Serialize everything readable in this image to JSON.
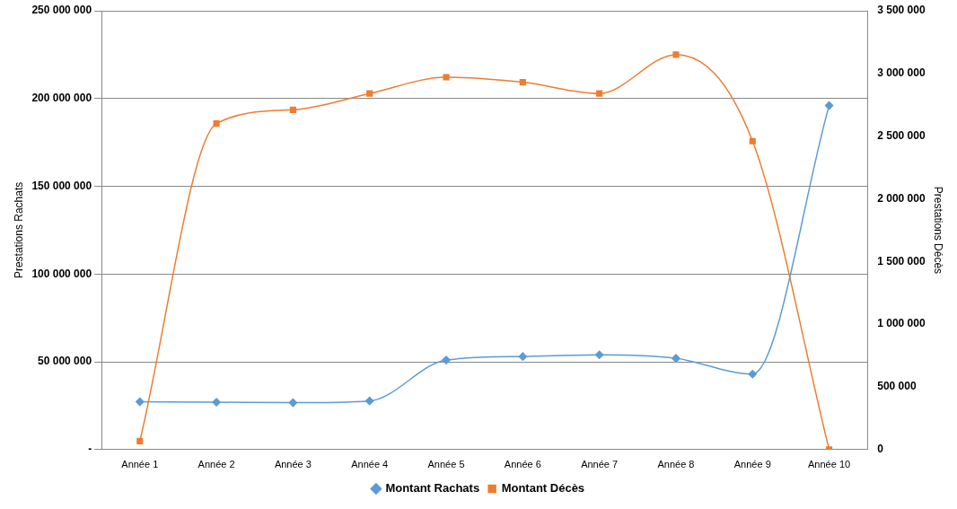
{
  "chart_data": {
    "type": "line",
    "categories": [
      "Année 1",
      "Année 2",
      "Année 3",
      "Année 4",
      "Année 5",
      "Année 6",
      "Année 7",
      "Année 8",
      "Année 9",
      "Année 10"
    ],
    "ylabel": "Prestations Rachats",
    "y2label": "Prestations Décès",
    "ylim": [
      0,
      250000000
    ],
    "yticks": [
      {
        "value": 0,
        "label": "-"
      },
      {
        "value": 50000000,
        "label": "50 000 000"
      },
      {
        "value": 100000000,
        "label": "100 000 000"
      },
      {
        "value": 150000000,
        "label": "150 000 000"
      },
      {
        "value": 200000000,
        "label": "200 000 000"
      },
      {
        "value": 250000000,
        "label": "250 000 000"
      }
    ],
    "y2lim": [
      0,
      3500000
    ],
    "y2ticks": [
      0,
      {
        "value": 500000,
        "label": "500 000"
      },
      {
        "value": 1000000,
        "label": "1 000 000"
      },
      {
        "value": 1500000,
        "label": "1 500 000"
      },
      {
        "value": 2000000,
        "label": "2 000 000"
      },
      {
        "value": 2500000,
        "label": "2 500 000"
      },
      {
        "value": 3000000,
        "label": "3 000 000"
      },
      {
        "value": 3500000,
        "label": "3 500 000"
      }
    ],
    "series": [
      {
        "name": "Montant Rachats",
        "color": "#5b9bd5",
        "marker": "diamond",
        "values": [
          27200000,
          27000000,
          26700000,
          27700000,
          51000000,
          53000000,
          54000000,
          52000000,
          43000000,
          196000000
        ]
      },
      {
        "name": "Montant Décès",
        "color": "#ed7d31",
        "marker": "square",
        "axis": "y2",
        "values": [
          67000,
          2600000,
          2710000,
          2840000,
          2970000,
          2930000,
          2840000,
          3150000,
          2460000,
          0
        ]
      }
    ],
    "grid": "y",
    "legend": "bottom",
    "line_style": "solid"
  }
}
